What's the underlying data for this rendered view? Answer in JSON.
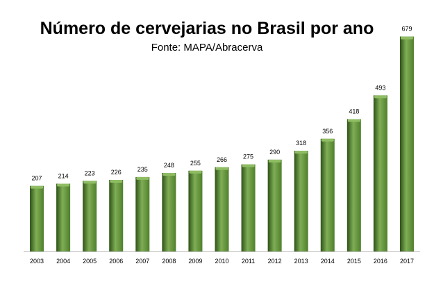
{
  "chart": {
    "title": "Número de cervejarias no Brasil por ano",
    "subtitle": "Fonte: MAPA/Abracerva"
  },
  "colors": {
    "bar": "#4f7f2c",
    "bar_dark": "#2e5218",
    "bar_light": "#7fae55",
    "bar_top": "#8fbd63",
    "axis": "#bfbfbf"
  },
  "chart_data": {
    "type": "bar",
    "title": "Número de cervejarias no Brasil por ano",
    "subtitle": "Fonte: MAPA/Abracerva",
    "categories": [
      "2003",
      "2004",
      "2005",
      "2006",
      "2007",
      "2008",
      "2009",
      "2010",
      "2011",
      "2012",
      "2013",
      "2014",
      "2015",
      "2016",
      "2017"
    ],
    "values": [
      207,
      214,
      223,
      226,
      235,
      248,
      255,
      266,
      275,
      290,
      318,
      356,
      418,
      493,
      679
    ],
    "xlabel": "",
    "ylabel": "",
    "ylim": [
      0,
      700
    ],
    "grid": false,
    "legend": "none",
    "data_labels": true
  }
}
